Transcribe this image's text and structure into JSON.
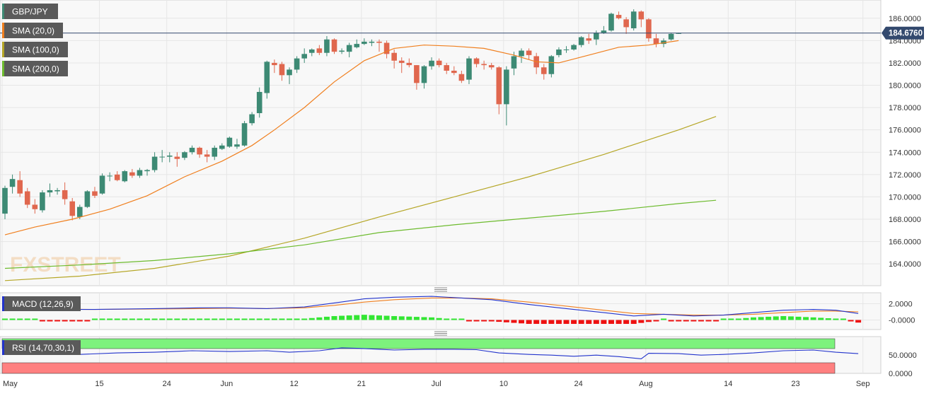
{
  "main_pane": {
    "ticker": "GBP/JPY",
    "indicators": [
      {
        "label": "SMA (20,0)",
        "color": "#f07f1e"
      },
      {
        "label": "SMA (100,0)",
        "color": "#b5a626"
      },
      {
        "label": "SMA (200,0)",
        "color": "#6dbb2e"
      }
    ],
    "last_price": "184.6760",
    "watermark": "FXSTREET"
  },
  "macd_pane": {
    "label": "MACD (12,26,9)"
  },
  "rsi_pane": {
    "label": "RSI (14,70,30,1)"
  },
  "colors": {
    "bull": "#3d8a74",
    "bear": "#e0674e",
    "price_line": "#33496e",
    "macd_line": "#2233cc",
    "signal_line": "#f07f1e",
    "hist_pos": "#33e633",
    "hist_neg": "#ee1111",
    "rsi_line": "#2233cc",
    "overbought_zone": "#7df27d",
    "oversold_zone": "#ff8080",
    "badge_bg": "#5a5a5a"
  },
  "chart_data": [
    {
      "type": "candlestick",
      "x_ticks": [
        "May",
        "15",
        "24",
        "Jun",
        "12",
        "21",
        "Jul",
        "10",
        "24",
        "Aug",
        "14",
        "23",
        "Sep"
      ],
      "y_ticks": [
        "164.0000",
        "166.0000",
        "168.0000",
        "170.0000",
        "172.0000",
        "174.0000",
        "176.0000",
        "178.0000",
        "180.0000",
        "182.0000",
        "184.0000",
        "186.0000"
      ],
      "ylim": [
        162.3,
        187.0
      ],
      "candles": [
        [
          168.5,
          171.0,
          168.0,
          170.8
        ],
        [
          170.9,
          172.0,
          170.3,
          171.6
        ],
        [
          171.5,
          172.3,
          170.0,
          170.3
        ],
        [
          170.5,
          170.8,
          169.0,
          169.3
        ],
        [
          169.3,
          169.8,
          168.5,
          168.9
        ],
        [
          168.8,
          170.6,
          168.6,
          170.4
        ],
        [
          170.4,
          171.2,
          170.0,
          170.6
        ],
        [
          170.5,
          170.8,
          170.2,
          170.6
        ],
        [
          170.6,
          171.3,
          169.3,
          169.8
        ],
        [
          169.6,
          169.9,
          167.9,
          168.3
        ],
        [
          168.2,
          169.3,
          168.0,
          169.1
        ],
        [
          169.1,
          170.6,
          169.0,
          170.5
        ],
        [
          170.5,
          170.9,
          169.9,
          170.1
        ],
        [
          170.3,
          172.1,
          170.2,
          171.9
        ],
        [
          171.9,
          172.2,
          171.4,
          171.9
        ],
        [
          172.0,
          172.3,
          171.4,
          171.5
        ],
        [
          171.4,
          172.4,
          171.3,
          172.3
        ],
        [
          172.2,
          172.5,
          171.7,
          171.9
        ],
        [
          171.9,
          172.6,
          171.7,
          172.4
        ],
        [
          172.3,
          172.5,
          171.9,
          172.4
        ],
        [
          172.4,
          174.0,
          172.2,
          173.6
        ],
        [
          173.6,
          174.2,
          173.1,
          173.6
        ],
        [
          173.6,
          174.0,
          173.1,
          173.7
        ],
        [
          173.6,
          174.0,
          172.7,
          173.4
        ],
        [
          173.5,
          174.1,
          173.3,
          174.0
        ],
        [
          174.0,
          174.6,
          173.8,
          174.4
        ],
        [
          174.4,
          174.5,
          173.5,
          173.8
        ],
        [
          173.8,
          174.2,
          173.1,
          173.6
        ],
        [
          173.6,
          174.6,
          173.3,
          174.4
        ],
        [
          174.3,
          174.8,
          174.2,
          174.6
        ],
        [
          174.5,
          175.4,
          174.4,
          175.3
        ],
        [
          174.5,
          175.2,
          174.3,
          174.7
        ],
        [
          174.6,
          176.8,
          174.5,
          176.6
        ],
        [
          176.6,
          177.6,
          176.4,
          177.4
        ],
        [
          177.5,
          179.8,
          177.1,
          179.4
        ],
        [
          179.3,
          182.2,
          178.8,
          182.1
        ],
        [
          182.0,
          182.3,
          181.1,
          181.8
        ],
        [
          181.9,
          182.1,
          180.4,
          180.9
        ],
        [
          180.9,
          181.6,
          180.1,
          181.4
        ],
        [
          181.4,
          182.6,
          181.1,
          182.4
        ],
        [
          182.4,
          183.3,
          182.0,
          182.8
        ],
        [
          182.9,
          183.3,
          182.6,
          183.2
        ],
        [
          183.3,
          183.6,
          182.7,
          182.9
        ],
        [
          182.9,
          184.4,
          182.6,
          184.1
        ],
        [
          184.1,
          184.2,
          182.8,
          183.0
        ],
        [
          183.0,
          183.3,
          182.8,
          183.1
        ],
        [
          183.0,
          183.8,
          182.5,
          183.6
        ],
        [
          183.4,
          184.1,
          183.3,
          183.7
        ],
        [
          183.7,
          184.2,
          183.6,
          183.9
        ],
        [
          183.8,
          184.1,
          183.5,
          183.9
        ],
        [
          183.9,
          184.1,
          183.0,
          183.8
        ],
        [
          183.8,
          184.0,
          182.4,
          182.8
        ],
        [
          182.9,
          183.2,
          181.5,
          182.2
        ],
        [
          182.2,
          182.5,
          181.1,
          182.0
        ],
        [
          182.0,
          182.4,
          181.6,
          181.8
        ],
        [
          181.8,
          181.8,
          179.6,
          180.2
        ],
        [
          180.2,
          181.8,
          179.7,
          181.7
        ],
        [
          181.7,
          182.5,
          181.4,
          182.2
        ],
        [
          182.2,
          182.4,
          181.6,
          181.8
        ],
        [
          181.8,
          182.0,
          181.0,
          181.3
        ],
        [
          181.3,
          181.7,
          180.9,
          181.1
        ],
        [
          181.0,
          181.3,
          180.2,
          180.4
        ],
        [
          180.5,
          182.6,
          180.1,
          182.4
        ],
        [
          182.4,
          182.5,
          181.6,
          181.9
        ],
        [
          181.9,
          182.2,
          181.4,
          181.8
        ],
        [
          181.8,
          182.0,
          181.4,
          181.6
        ],
        [
          181.6,
          181.7,
          177.4,
          178.3
        ],
        [
          178.3,
          181.7,
          176.4,
          181.4
        ],
        [
          181.5,
          183.0,
          180.9,
          182.6
        ],
        [
          182.6,
          183.3,
          182.0,
          183.1
        ],
        [
          183.1,
          183.3,
          182.3,
          182.7
        ],
        [
          182.6,
          182.9,
          181.0,
          181.6
        ],
        [
          181.6,
          181.9,
          180.5,
          181.0
        ],
        [
          181.0,
          182.7,
          180.7,
          182.6
        ],
        [
          182.7,
          183.4,
          182.5,
          183.2
        ],
        [
          183.2,
          183.5,
          182.9,
          183.2
        ],
        [
          183.2,
          183.7,
          183.1,
          183.6
        ],
        [
          183.6,
          184.4,
          183.4,
          184.3
        ],
        [
          184.2,
          184.6,
          183.7,
          184.0
        ],
        [
          184.1,
          184.9,
          183.6,
          184.7
        ],
        [
          184.7,
          185.3,
          184.6,
          184.9
        ],
        [
          184.9,
          186.5,
          184.8,
          186.4
        ],
        [
          186.3,
          186.6,
          185.9,
          186.0
        ],
        [
          185.9,
          186.1,
          184.6,
          185.2
        ],
        [
          185.1,
          186.8,
          184.9,
          186.6
        ],
        [
          186.6,
          186.7,
          185.2,
          185.9
        ],
        [
          185.9,
          186.0,
          183.9,
          184.2
        ],
        [
          184.2,
          184.6,
          183.4,
          183.7
        ],
        [
          183.7,
          184.2,
          183.4,
          184.0
        ],
        [
          184.1,
          184.7,
          184.0,
          184.6
        ],
        [
          184.6,
          184.7,
          184.6,
          184.68
        ]
      ],
      "series": [
        {
          "name": "SMA (20,0)",
          "values": [
            [
              0,
              166.6
            ],
            [
              4,
              167.3
            ],
            [
              9,
              168.0
            ],
            [
              14,
              168.9
            ],
            [
              19,
              170.1
            ],
            [
              24,
              171.8
            ],
            [
              29,
              173.2
            ],
            [
              33,
              174.6
            ],
            [
              36,
              176.0
            ],
            [
              40,
              178.0
            ],
            [
              44,
              180.3
            ],
            [
              48,
              182.2
            ],
            [
              52,
              183.3
            ],
            [
              56,
              183.6
            ],
            [
              60,
              183.5
            ],
            [
              64,
              183.3
            ],
            [
              68,
              182.7
            ],
            [
              71,
              182.1
            ],
            [
              74,
              182.0
            ],
            [
              78,
              182.7
            ],
            [
              82,
              183.4
            ],
            [
              86,
              183.6
            ],
            [
              90,
              184.0
            ]
          ]
        },
        {
          "name": "SMA (100,0)",
          "values": [
            [
              0,
              162.5
            ],
            [
              10,
              162.9
            ],
            [
              20,
              163.6
            ],
            [
              30,
              164.7
            ],
            [
              40,
              166.3
            ],
            [
              50,
              168.2
            ],
            [
              60,
              170.0
            ],
            [
              70,
              171.8
            ],
            [
              80,
              173.8
            ],
            [
              90,
              176.0
            ],
            [
              95,
              177.2
            ]
          ]
        },
        {
          "name": "SMA (200,0)",
          "values": [
            [
              0,
              163.6
            ],
            [
              10,
              163.9
            ],
            [
              20,
              164.3
            ],
            [
              30,
              164.9
            ],
            [
              40,
              165.7
            ],
            [
              50,
              166.8
            ],
            [
              60,
              167.5
            ],
            [
              70,
              168.1
            ],
            [
              80,
              168.7
            ],
            [
              90,
              169.4
            ],
            [
              95,
              169.7
            ]
          ]
        }
      ],
      "last_value": 184.676
    },
    {
      "type": "macd",
      "y_ticks": [
        "2.0000",
        "-0.0000"
      ],
      "ylim": [
        -1.0,
        3.0
      ],
      "macd": [
        [
          0,
          1.5
        ],
        [
          6,
          1.3
        ],
        [
          12,
          1.3
        ],
        [
          20,
          1.4
        ],
        [
          26,
          1.5
        ],
        [
          30,
          1.5
        ],
        [
          35,
          1.4
        ],
        [
          40,
          1.6
        ],
        [
          44,
          2.1
        ],
        [
          48,
          2.6
        ],
        [
          52,
          2.8
        ],
        [
          57,
          2.9
        ],
        [
          61,
          2.7
        ],
        [
          65,
          2.5
        ],
        [
          70,
          1.9
        ],
        [
          75,
          1.4
        ],
        [
          80,
          0.9
        ],
        [
          84,
          0.5
        ],
        [
          88,
          0.7
        ],
        [
          92,
          0.5
        ],
        [
          96,
          0.6
        ],
        [
          100,
          0.9
        ],
        [
          104,
          1.2
        ],
        [
          108,
          1.3
        ],
        [
          111,
          1.2
        ],
        [
          114,
          0.8
        ]
      ],
      "signal": [
        [
          0,
          1.4
        ],
        [
          6,
          1.35
        ],
        [
          12,
          1.3
        ],
        [
          20,
          1.35
        ],
        [
          26,
          1.4
        ],
        [
          30,
          1.45
        ],
        [
          35,
          1.4
        ],
        [
          40,
          1.5
        ],
        [
          44,
          1.8
        ],
        [
          48,
          2.2
        ],
        [
          52,
          2.5
        ],
        [
          57,
          2.7
        ],
        [
          61,
          2.7
        ],
        [
          65,
          2.6
        ],
        [
          70,
          2.2
        ],
        [
          75,
          1.7
        ],
        [
          80,
          1.2
        ],
        [
          84,
          0.8
        ],
        [
          88,
          0.7
        ],
        [
          92,
          0.6
        ],
        [
          96,
          0.6
        ],
        [
          100,
          0.7
        ],
        [
          104,
          0.9
        ],
        [
          108,
          1.1
        ],
        [
          111,
          1.1
        ],
        [
          114,
          1.0
        ]
      ]
    },
    {
      "type": "rsi",
      "y_ticks": [
        "50.0000",
        "0.0000"
      ],
      "ylim": [
        0,
        95
      ],
      "rsi": [
        [
          0,
          60
        ],
        [
          5,
          58
        ],
        [
          10,
          52
        ],
        [
          15,
          56
        ],
        [
          20,
          58
        ],
        [
          25,
          62
        ],
        [
          30,
          60
        ],
        [
          35,
          62
        ],
        [
          38,
          58
        ],
        [
          42,
          62
        ],
        [
          45,
          70
        ],
        [
          48,
          68
        ],
        [
          52,
          64
        ],
        [
          56,
          66
        ],
        [
          60,
          66
        ],
        [
          63,
          65
        ],
        [
          66,
          56
        ],
        [
          70,
          52
        ],
        [
          73,
          50
        ],
        [
          76,
          47
        ],
        [
          79,
          50
        ],
        [
          82,
          46
        ],
        [
          85,
          40
        ],
        [
          86,
          55
        ],
        [
          90,
          54
        ],
        [
          93,
          50
        ],
        [
          96,
          52
        ],
        [
          100,
          56
        ],
        [
          104,
          62
        ],
        [
          108,
          64
        ],
        [
          111,
          58
        ],
        [
          114,
          54
        ]
      ]
    }
  ]
}
